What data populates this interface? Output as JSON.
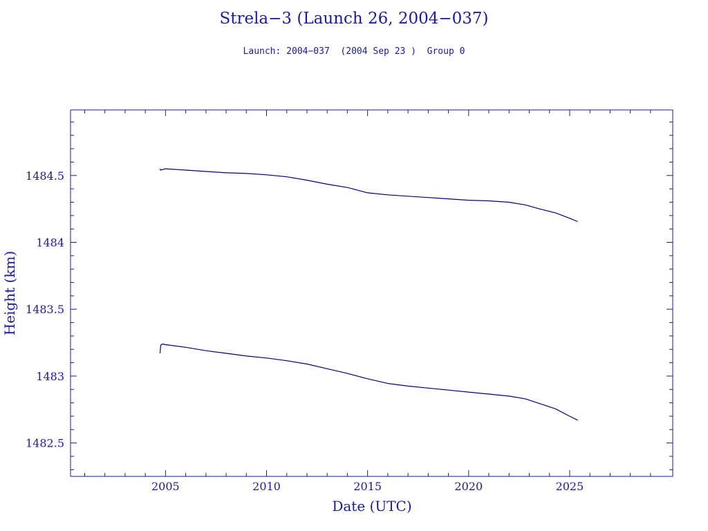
{
  "chart_data": {
    "type": "line",
    "title": "Strela−3 (Launch 26, 2004−037)",
    "subtitle": "Launch: 2004−037  (2004 Sep 23 )  Group 0",
    "xlabel": "Date (UTC)",
    "ylabel": "Height (km)",
    "xlim": [
      2000.3,
      2030.1
    ],
    "ylim": [
      1482.25,
      1484.99
    ],
    "x_ticks": [
      2005,
      2010,
      2015,
      2020,
      2025
    ],
    "x_tick_labels": [
      "2005",
      "2010",
      "2015",
      "2020",
      "2025"
    ],
    "y_ticks": [
      1482.5,
      1483,
      1483.5,
      1484,
      1484.5
    ],
    "y_tick_labels": [
      "1482.5",
      "1483",
      "1483.5",
      "1484",
      "1484.5"
    ],
    "grid": false,
    "colors": {
      "axis": "#1a1a9c",
      "series": "#00007a"
    },
    "series": [
      {
        "x": [
          2004.73,
          2004.75,
          2005.0,
          2006.0,
          2007.0,
          2008.0,
          2009.0,
          2010.0,
          2011.0,
          2012.0,
          2013.0,
          2014.0,
          2015.0,
          2016.0,
          2017.0,
          2018.0,
          2019.0,
          2020.0,
          2021.0,
          2022.0,
          2022.8,
          2023.5,
          2024.3,
          2025.0,
          2025.4
        ],
        "y": [
          1484.55,
          1484.54,
          1484.55,
          1484.54,
          1484.53,
          1484.52,
          1484.515,
          1484.505,
          1484.49,
          1484.465,
          1484.435,
          1484.41,
          1484.37,
          1484.355,
          1484.345,
          1484.335,
          1484.325,
          1484.315,
          1484.31,
          1484.3,
          1484.28,
          1484.25,
          1484.22,
          1484.18,
          1484.155
        ]
      },
      {
        "x": [
          2004.73,
          2004.76,
          2004.85,
          2005.0,
          2006.0,
          2007.0,
          2008.0,
          2009.0,
          2010.0,
          2011.0,
          2012.0,
          2013.0,
          2014.0,
          2015.0,
          2016.0,
          2017.0,
          2018.0,
          2019.0,
          2020.0,
          2021.0,
          2022.0,
          2022.8,
          2023.5,
          2024.3,
          2025.0,
          2025.4
        ],
        "y": [
          1483.17,
          1483.23,
          1483.24,
          1483.235,
          1483.215,
          1483.19,
          1483.17,
          1483.15,
          1483.135,
          1483.115,
          1483.09,
          1483.055,
          1483.02,
          1482.98,
          1482.945,
          1482.925,
          1482.91,
          1482.895,
          1482.88,
          1482.865,
          1482.85,
          1482.83,
          1482.795,
          1482.755,
          1482.7,
          1482.67
        ]
      }
    ]
  }
}
